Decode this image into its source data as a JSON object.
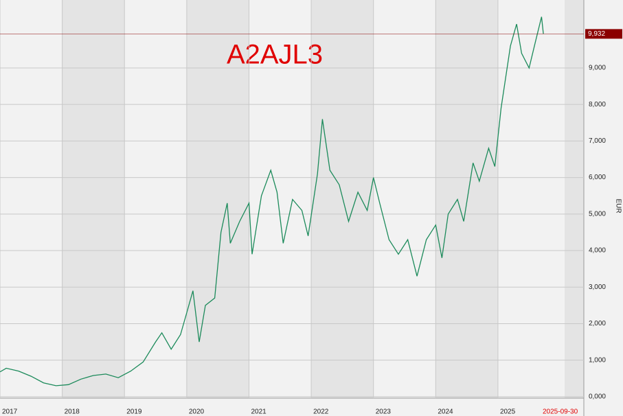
{
  "chart_data": {
    "type": "line",
    "title": "A2AJL3",
    "y_axis_label": "EUR",
    "color": "#1b8a5a",
    "title_color": "#e00000",
    "x": [
      2017.0,
      2017.1,
      2017.3,
      2017.5,
      2017.7,
      2017.9,
      2018.1,
      2018.3,
      2018.5,
      2018.7,
      2018.9,
      2019.1,
      2019.3,
      2019.5,
      2019.6,
      2019.75,
      2019.9,
      2020.0,
      2020.1,
      2020.2,
      2020.3,
      2020.45,
      2020.55,
      2020.65,
      2020.7,
      2020.85,
      2021.0,
      2021.05,
      2021.2,
      2021.35,
      2021.45,
      2021.55,
      2021.7,
      2021.85,
      2021.95,
      2022.1,
      2022.18,
      2022.3,
      2022.45,
      2022.6,
      2022.75,
      2022.9,
      2023.0,
      2023.1,
      2023.25,
      2023.4,
      2023.55,
      2023.7,
      2023.85,
      2024.0,
      2024.1,
      2024.2,
      2024.35,
      2024.45,
      2024.6,
      2024.7,
      2024.85,
      2024.95,
      2025.05,
      2025.2,
      2025.3,
      2025.38,
      2025.5,
      2025.6,
      2025.7,
      2025.73
    ],
    "values": [
      680,
      780,
      700,
      560,
      380,
      300,
      330,
      480,
      580,
      620,
      520,
      700,
      950,
      1500,
      1750,
      1300,
      1700,
      2300,
      2900,
      1500,
      2500,
      2700,
      4500,
      5300,
      4200,
      4800,
      5300,
      3900,
      5500,
      6200,
      5600,
      4200,
      5400,
      5100,
      4400,
      6100,
      7600,
      6200,
      5800,
      4800,
      5600,
      5100,
      6000,
      5300,
      4300,
      3900,
      4300,
      3300,
      4300,
      4700,
      3800,
      5000,
      5400,
      4800,
      6400,
      5900,
      6800,
      6300,
      7900,
      9600,
      10200,
      9400,
      9000,
      9700,
      10400,
      9932
    ],
    "xlim": [
      2017.0,
      2026.38
    ],
    "xticks": [
      2017,
      2018,
      2019,
      2020,
      2021,
      2022,
      2023,
      2024,
      2025
    ],
    "ylim": [
      -40,
      10860
    ],
    "yticks": [
      {
        "value": 0,
        "label": "0,000"
      },
      {
        "value": 1000,
        "label": "1,000"
      },
      {
        "value": 2000,
        "label": "2,000"
      },
      {
        "value": 3000,
        "label": "3,000"
      },
      {
        "value": 4000,
        "label": "4,000"
      },
      {
        "value": 5000,
        "label": "5,000"
      },
      {
        "value": 6000,
        "label": "6,000"
      },
      {
        "value": 7000,
        "label": "7,000"
      },
      {
        "value": 8000,
        "label": "8,000"
      },
      {
        "value": 9000,
        "label": "9,000"
      }
    ],
    "last_price": {
      "value": 9932,
      "label": "9,932"
    },
    "date_label": "2025-09-30",
    "grid": true
  }
}
